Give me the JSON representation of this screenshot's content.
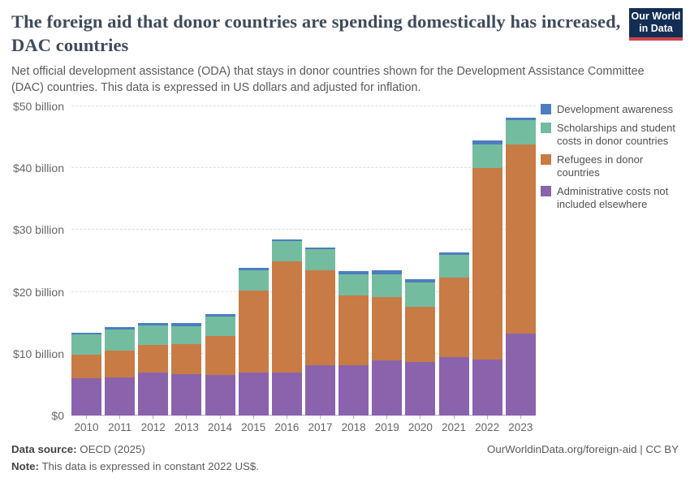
{
  "header": {
    "title": "The foreign aid that donor countries are spending domestically has increased, DAC countries",
    "subtitle": "Net official development assistance (ODA) that stays in donor countries shown for the Development Assistance Committee (DAC) countries. This data is expressed in US dollars and adjusted for inflation.",
    "logo": {
      "line1": "Our World",
      "line2": "in Data",
      "bg_color": "#132e53",
      "accent_color": "#ce4449"
    }
  },
  "chart_data": {
    "type": "bar",
    "stacked": true,
    "title": "The foreign aid that donor countries are spending domestically has increased, DAC countries",
    "xlabel": "",
    "ylabel": "",
    "ylim": [
      0,
      50
    ],
    "grid": "horizontal-dashed",
    "legend_position": "right",
    "categories": [
      "2010",
      "2011",
      "2012",
      "2013",
      "2014",
      "2015",
      "2016",
      "2017",
      "2018",
      "2019",
      "2020",
      "2021",
      "2022",
      "2023"
    ],
    "unit": "billion US$ (constant 2022)",
    "series": [
      {
        "name": "Administrative costs not included elsewhere",
        "color": "#8a63ac",
        "values": [
          6.1,
          6.2,
          7.0,
          6.7,
          6.5,
          6.9,
          6.9,
          8.2,
          8.2,
          8.9,
          8.7,
          9.5,
          9.0,
          13.3
        ]
      },
      {
        "name": "Refugees in donor countries",
        "color": "#c87b45",
        "values": [
          3.8,
          4.3,
          4.4,
          4.8,
          6.4,
          13.3,
          18.0,
          15.3,
          11.2,
          10.2,
          8.9,
          12.8,
          31.0,
          30.5
        ]
      },
      {
        "name": "Scholarships and student costs in donor countries",
        "color": "#74bca0",
        "values": [
          3.2,
          3.4,
          3.2,
          3.0,
          3.1,
          3.3,
          3.3,
          3.4,
          3.5,
          3.8,
          3.9,
          3.7,
          3.9,
          4.0
        ]
      },
      {
        "name": "Development awareness",
        "color": "#4c7dc0",
        "values": [
          0.35,
          0.4,
          0.4,
          0.4,
          0.4,
          0.4,
          0.3,
          0.3,
          0.5,
          0.6,
          0.5,
          0.4,
          0.6,
          0.4
        ]
      }
    ],
    "totals": [
      13.45,
      14.3,
      15.0,
      14.9,
      16.4,
      23.9,
      28.5,
      27.2,
      23.4,
      23.5,
      22.0,
      26.4,
      44.5,
      48.2
    ],
    "yticks": [
      {
        "value": 0,
        "label": "$0"
      },
      {
        "value": 10,
        "label": "$10 billion"
      },
      {
        "value": 20,
        "label": "$20 billion"
      },
      {
        "value": 30,
        "label": "$30 billion"
      },
      {
        "value": 40,
        "label": "$40 billion"
      },
      {
        "value": 50,
        "label": "$50 billion"
      }
    ]
  },
  "legend": {
    "items": [
      {
        "label": "Development awareness",
        "color": "#4c7dc0"
      },
      {
        "label": "Scholarships and student costs in donor countries",
        "color": "#74bca0"
      },
      {
        "label": "Refugees in donor countries",
        "color": "#c87b45"
      },
      {
        "label": "Administrative costs not included elsewhere",
        "color": "#8a63ac"
      }
    ]
  },
  "footer": {
    "data_source_label": "Data source:",
    "data_source_value": " OECD (2025)",
    "note_label": "Note:",
    "note_value": " This data is expressed in constant 2022 US$.",
    "link": "OurWorldinData.org/foreign-aid | CC BY"
  }
}
